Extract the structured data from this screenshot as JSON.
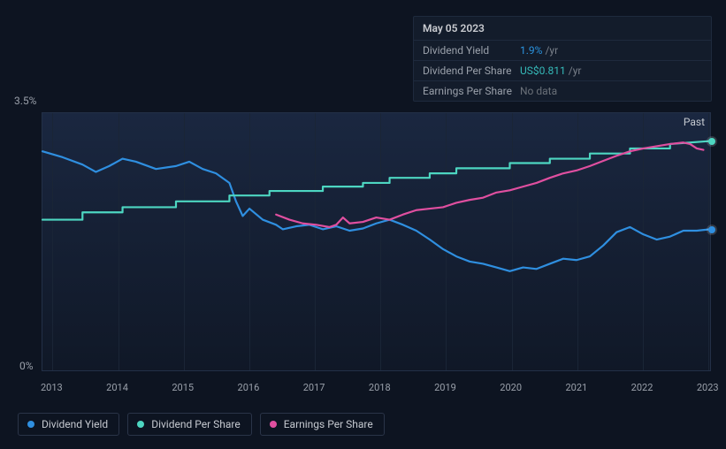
{
  "tooltip": {
    "date": "May 05 2023",
    "rows": [
      {
        "label": "Dividend Yield",
        "value": "1.9%",
        "unit": "/yr",
        "value_color": "#2a94e0"
      },
      {
        "label": "Dividend Per Share",
        "value": "US$0.811",
        "unit": "/yr",
        "value_color": "#35b9b8"
      },
      {
        "label": "Earnings Per Share",
        "value": "No data",
        "unit": "",
        "value_color": "#6a7078"
      }
    ]
  },
  "chart": {
    "type": "line",
    "background_gradient": [
      "#1a2740",
      "#101827"
    ],
    "grid_color": "#1a2536",
    "border_color": "#233047",
    "past_label": "Past",
    "y_axis": {
      "min": 0,
      "max": 3.5,
      "labels": {
        "top": "3.5%",
        "bottom": "0%"
      },
      "label_color": "#9aa0aa",
      "label_fontsize": 12
    },
    "x_axis": {
      "categories": [
        "2013",
        "2014",
        "2015",
        "2016",
        "2017",
        "2018",
        "2019",
        "2020",
        "2021",
        "2022",
        "2023"
      ],
      "positions_pct": [
        1.5,
        11.3,
        21.1,
        30.9,
        40.7,
        50.5,
        60.3,
        70.1,
        79.9,
        89.7,
        99.5
      ],
      "label_color": "#9aa0aa",
      "label_fontsize": 11
    },
    "series": [
      {
        "name": "Dividend Yield",
        "color": "#2f8fe0",
        "line_width": 2.2,
        "end_dot": true,
        "points": [
          [
            0,
            2.98
          ],
          [
            3,
            2.9
          ],
          [
            6,
            2.8
          ],
          [
            8,
            2.7
          ],
          [
            10,
            2.78
          ],
          [
            12,
            2.88
          ],
          [
            14,
            2.84
          ],
          [
            17,
            2.74
          ],
          [
            20,
            2.78
          ],
          [
            22,
            2.84
          ],
          [
            24,
            2.74
          ],
          [
            26,
            2.68
          ],
          [
            28,
            2.55
          ],
          [
            29,
            2.3
          ],
          [
            30,
            2.1
          ],
          [
            31,
            2.2
          ],
          [
            33,
            2.05
          ],
          [
            35,
            1.98
          ],
          [
            36,
            1.92
          ],
          [
            38,
            1.96
          ],
          [
            40,
            1.98
          ],
          [
            42,
            1.92
          ],
          [
            44,
            1.96
          ],
          [
            46,
            1.9
          ],
          [
            48,
            1.93
          ],
          [
            50,
            2.0
          ],
          [
            52,
            2.05
          ],
          [
            54,
            1.98
          ],
          [
            56,
            1.9
          ],
          [
            58,
            1.78
          ],
          [
            60,
            1.65
          ],
          [
            62,
            1.55
          ],
          [
            64,
            1.48
          ],
          [
            66,
            1.45
          ],
          [
            68,
            1.4
          ],
          [
            70,
            1.35
          ],
          [
            72,
            1.4
          ],
          [
            74,
            1.38
          ],
          [
            76,
            1.45
          ],
          [
            78,
            1.52
          ],
          [
            80,
            1.5
          ],
          [
            82,
            1.55
          ],
          [
            84,
            1.7
          ],
          [
            86,
            1.88
          ],
          [
            88,
            1.95
          ],
          [
            90,
            1.85
          ],
          [
            92,
            1.78
          ],
          [
            94,
            1.82
          ],
          [
            96,
            1.9
          ],
          [
            98,
            1.9
          ],
          [
            100,
            1.92
          ]
        ]
      },
      {
        "name": "Dividend Per Share",
        "color": "#4dd6c1",
        "line_width": 2.2,
        "end_dot": true,
        "points": [
          [
            0,
            2.05
          ],
          [
            4,
            2.05
          ],
          [
            6,
            2.05
          ],
          [
            6,
            2.15
          ],
          [
            12,
            2.15
          ],
          [
            12,
            2.22
          ],
          [
            20,
            2.22
          ],
          [
            20,
            2.3
          ],
          [
            28,
            2.3
          ],
          [
            28,
            2.38
          ],
          [
            34,
            2.38
          ],
          [
            34,
            2.44
          ],
          [
            42,
            2.44
          ],
          [
            42,
            2.5
          ],
          [
            48,
            2.5
          ],
          [
            48,
            2.55
          ],
          [
            52,
            2.55
          ],
          [
            52,
            2.62
          ],
          [
            58,
            2.62
          ],
          [
            58,
            2.68
          ],
          [
            62,
            2.68
          ],
          [
            62,
            2.75
          ],
          [
            70,
            2.75
          ],
          [
            70,
            2.82
          ],
          [
            76,
            2.82
          ],
          [
            76,
            2.88
          ],
          [
            82,
            2.88
          ],
          [
            82,
            2.95
          ],
          [
            88,
            2.95
          ],
          [
            88,
            3.02
          ],
          [
            94,
            3.02
          ],
          [
            94,
            3.08
          ],
          [
            100,
            3.12
          ]
        ]
      },
      {
        "name": "Earnings Per Share",
        "color": "#e04fa0",
        "line_width": 2.2,
        "end_dot": false,
        "points": [
          [
            35,
            2.12
          ],
          [
            37,
            2.05
          ],
          [
            39,
            2.0
          ],
          [
            41,
            1.98
          ],
          [
            43,
            1.95
          ],
          [
            44,
            1.98
          ],
          [
            45,
            2.08
          ],
          [
            46,
            2.0
          ],
          [
            48,
            2.02
          ],
          [
            50,
            2.08
          ],
          [
            52,
            2.05
          ],
          [
            54,
            2.12
          ],
          [
            56,
            2.18
          ],
          [
            58,
            2.2
          ],
          [
            60,
            2.22
          ],
          [
            62,
            2.28
          ],
          [
            64,
            2.32
          ],
          [
            66,
            2.35
          ],
          [
            68,
            2.42
          ],
          [
            70,
            2.45
          ],
          [
            72,
            2.5
          ],
          [
            74,
            2.55
          ],
          [
            76,
            2.62
          ],
          [
            78,
            2.68
          ],
          [
            80,
            2.72
          ],
          [
            82,
            2.78
          ],
          [
            84,
            2.85
          ],
          [
            86,
            2.92
          ],
          [
            88,
            2.98
          ],
          [
            90,
            3.02
          ],
          [
            92,
            3.05
          ],
          [
            94,
            3.08
          ],
          [
            96,
            3.1
          ],
          [
            97,
            3.08
          ],
          [
            98,
            3.02
          ],
          [
            99,
            3.0
          ]
        ]
      }
    ]
  },
  "legend": {
    "items": [
      {
        "label": "Dividend Yield",
        "color": "#2f8fe0"
      },
      {
        "label": "Dividend Per Share",
        "color": "#4dd6c1"
      },
      {
        "label": "Earnings Per Share",
        "color": "#e04fa0"
      }
    ],
    "border_color": "#2a3448",
    "text_color": "#c5c9d0",
    "fontsize": 12
  }
}
